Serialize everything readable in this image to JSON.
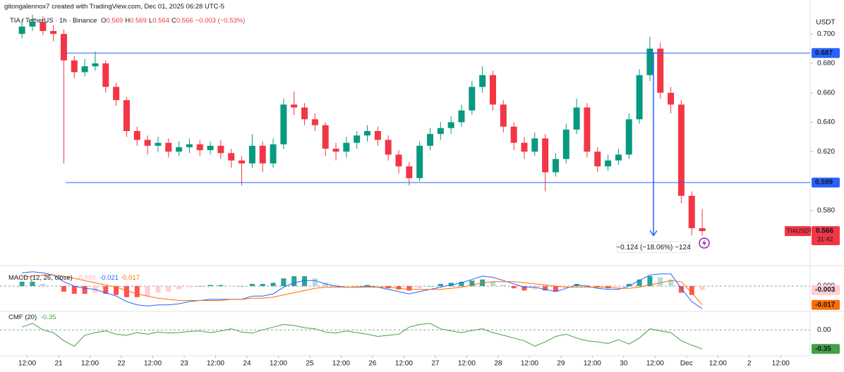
{
  "chart_data": {
    "type": "candlestick",
    "attribution": "gitongalennox7 created with TradingView.com, Dec 01, 2025 06:28 UTC-5",
    "symbol": "TIA / TetherUS · 1h · Binance",
    "ohlc_legend": [
      {
        "key": "O",
        "value": "0.569"
      },
      {
        "key": "H",
        "value": "0.569"
      },
      {
        "key": "L",
        "value": "0.564"
      },
      {
        "key": "C",
        "value": "0.566"
      }
    ],
    "change": "−0.003 (−0.53%)",
    "unit": "USDT",
    "up_color": "#089981",
    "down_color": "#f23645",
    "x": [
      "2025-11-20T08:00",
      "2025-11-20T12:00",
      "2025-11-20T16:00",
      "2025-11-20T20:00",
      "2025-11-21T00:00",
      "2025-11-21T04:00",
      "2025-11-21T08:00",
      "2025-11-21T12:00",
      "2025-11-21T16:00",
      "2025-11-21T20:00",
      "2025-11-22T00:00",
      "2025-11-22T04:00",
      "2025-11-22T08:00",
      "2025-11-22T12:00",
      "2025-11-22T16:00",
      "2025-11-22T20:00",
      "2025-11-23T00:00",
      "2025-11-23T04:00",
      "2025-11-23T08:00",
      "2025-11-23T12:00",
      "2025-11-23T16:00",
      "2025-11-23T20:00",
      "2025-11-24T00:00",
      "2025-11-24T04:00",
      "2025-11-24T08:00",
      "2025-11-24T12:00",
      "2025-11-24T16:00",
      "2025-11-24T20:00",
      "2025-11-25T00:00",
      "2025-11-25T04:00",
      "2025-11-25T08:00",
      "2025-11-25T12:00",
      "2025-11-25T16:00",
      "2025-11-25T20:00",
      "2025-11-26T00:00",
      "2025-11-26T04:00",
      "2025-11-26T08:00",
      "2025-11-26T12:00",
      "2025-11-26T16:00",
      "2025-11-26T20:00",
      "2025-11-27T00:00",
      "2025-11-27T04:00",
      "2025-11-27T08:00",
      "2025-11-27T12:00",
      "2025-11-27T16:00",
      "2025-11-27T20:00",
      "2025-11-28T00:00",
      "2025-11-28T04:00",
      "2025-11-28T08:00",
      "2025-11-28T12:00",
      "2025-11-28T16:00",
      "2025-11-28T20:00",
      "2025-11-29T00:00",
      "2025-11-29T04:00",
      "2025-11-29T08:00",
      "2025-11-29T12:00",
      "2025-11-29T16:00",
      "2025-11-29T20:00",
      "2025-11-30T00:00",
      "2025-11-30T04:00",
      "2025-11-30T08:00",
      "2025-11-30T12:00",
      "2025-11-30T16:00",
      "2025-11-30T20:00",
      "2025-12-01T00:00",
      "2025-12-01T04:00"
    ],
    "open": [
      0.7,
      0.705,
      0.708,
      0.702,
      0.7,
      0.682,
      0.674,
      0.678,
      0.68,
      0.664,
      0.655,
      0.634,
      0.628,
      0.624,
      0.626,
      0.62,
      0.623,
      0.625,
      0.621,
      0.624,
      0.619,
      0.614,
      0.612,
      0.624,
      0.612,
      0.625,
      0.652,
      0.65,
      0.642,
      0.638,
      0.622,
      0.62,
      0.626,
      0.631,
      0.634,
      0.628,
      0.618,
      0.61,
      0.602,
      0.624,
      0.632,
      0.636,
      0.64,
      0.648,
      0.664,
      0.672,
      0.652,
      0.637,
      0.626,
      0.62,
      0.629,
      0.606,
      0.615,
      0.635,
      0.65,
      0.62,
      0.61,
      0.614,
      0.618,
      0.642,
      0.672,
      0.69,
      0.66,
      0.652,
      0.59,
      0.568
    ],
    "high": [
      0.71,
      0.713,
      0.712,
      0.706,
      0.703,
      0.685,
      0.683,
      0.688,
      0.682,
      0.667,
      0.657,
      0.637,
      0.631,
      0.63,
      0.629,
      0.627,
      0.629,
      0.628,
      0.627,
      0.628,
      0.622,
      0.617,
      0.632,
      0.627,
      0.629,
      0.656,
      0.661,
      0.653,
      0.646,
      0.64,
      0.626,
      0.63,
      0.634,
      0.638,
      0.637,
      0.631,
      0.621,
      0.613,
      0.627,
      0.636,
      0.64,
      0.644,
      0.652,
      0.668,
      0.678,
      0.675,
      0.655,
      0.64,
      0.63,
      0.633,
      0.632,
      0.619,
      0.639,
      0.656,
      0.653,
      0.623,
      0.618,
      0.622,
      0.646,
      0.676,
      0.698,
      0.694,
      0.664,
      0.655,
      0.593,
      0.581
    ],
    "low": [
      0.697,
      0.702,
      0.699,
      0.695,
      0.612,
      0.67,
      0.671,
      0.675,
      0.66,
      0.651,
      0.63,
      0.624,
      0.618,
      0.62,
      0.616,
      0.617,
      0.619,
      0.617,
      0.618,
      0.615,
      0.609,
      0.597,
      0.609,
      0.606,
      0.609,
      0.622,
      0.645,
      0.638,
      0.634,
      0.617,
      0.614,
      0.616,
      0.622,
      0.627,
      0.624,
      0.614,
      0.605,
      0.597,
      0.6,
      0.621,
      0.628,
      0.632,
      0.637,
      0.645,
      0.66,
      0.648,
      0.633,
      0.621,
      0.615,
      0.617,
      0.593,
      0.603,
      0.612,
      0.632,
      0.616,
      0.606,
      0.607,
      0.611,
      0.615,
      0.639,
      0.668,
      0.656,
      0.646,
      0.585,
      0.563,
      0.563
    ],
    "close": [
      0.705,
      0.708,
      0.702,
      0.7,
      0.682,
      0.674,
      0.678,
      0.68,
      0.664,
      0.655,
      0.634,
      0.628,
      0.624,
      0.626,
      0.62,
      0.623,
      0.625,
      0.621,
      0.624,
      0.619,
      0.614,
      0.612,
      0.624,
      0.612,
      0.625,
      0.652,
      0.65,
      0.642,
      0.638,
      0.622,
      0.62,
      0.626,
      0.631,
      0.634,
      0.628,
      0.618,
      0.61,
      0.602,
      0.624,
      0.632,
      0.636,
      0.64,
      0.648,
      0.664,
      0.672,
      0.652,
      0.637,
      0.626,
      0.62,
      0.629,
      0.606,
      0.615,
      0.635,
      0.65,
      0.62,
      0.61,
      0.614,
      0.618,
      0.642,
      0.672,
      0.69,
      0.66,
      0.652,
      0.59,
      0.568,
      0.566
    ],
    "xlim": [
      "2025-11-20T01:36",
      "2025-12-02T23:15"
    ],
    "xticks": [
      {
        "value": "2025-11-20T12:00",
        "label": "12:00"
      },
      {
        "value": "2025-11-21T00:00",
        "label": "21"
      },
      {
        "value": "2025-11-21T12:00",
        "label": "12:00"
      },
      {
        "value": "2025-11-22T00:00",
        "label": "22"
      },
      {
        "value": "2025-11-22T12:00",
        "label": "12:00"
      },
      {
        "value": "2025-11-23T00:00",
        "label": "23"
      },
      {
        "value": "2025-11-23T12:00",
        "label": "12:00"
      },
      {
        "value": "2025-11-24T00:00",
        "label": "24"
      },
      {
        "value": "2025-11-24T12:00",
        "label": "12:00"
      },
      {
        "value": "2025-11-25T00:00",
        "label": "25"
      },
      {
        "value": "2025-11-25T12:00",
        "label": "12:00"
      },
      {
        "value": "2025-11-26T00:00",
        "label": "26"
      },
      {
        "value": "2025-11-26T12:00",
        "label": "12:00"
      },
      {
        "value": "2025-11-27T00:00",
        "label": "27"
      },
      {
        "value": "2025-11-27T12:00",
        "label": "12:00"
      },
      {
        "value": "2025-11-28T00:00",
        "label": "28"
      },
      {
        "value": "2025-11-28T12:00",
        "label": "12:00"
      },
      {
        "value": "2025-11-29T00:00",
        "label": "29"
      },
      {
        "value": "2025-11-29T12:00",
        "label": "12:00"
      },
      {
        "value": "2025-11-30T00:00",
        "label": "30"
      },
      {
        "value": "2025-11-30T12:00",
        "label": "12:00"
      },
      {
        "value": "2025-12-01T00:00",
        "label": "Dec"
      },
      {
        "value": "2025-12-01T12:00",
        "label": "12:00"
      },
      {
        "value": "2025-12-02T00:00",
        "label": "2"
      },
      {
        "value": "2025-12-02T12:00",
        "label": "12:00"
      }
    ],
    "ylim": [
      0.555,
      0.713
    ],
    "yticks": [
      {
        "value": 0.58,
        "label": "0.580"
      },
      {
        "value": 0.62,
        "label": "0.620"
      },
      {
        "value": 0.64,
        "label": "0.640"
      },
      {
        "value": 0.66,
        "label": "0.660"
      },
      {
        "value": 0.68,
        "label": "0.680"
      },
      {
        "value": 0.7,
        "label": "0.700"
      }
    ],
    "levels": [
      {
        "value": 0.687,
        "label": "0.687"
      },
      {
        "value": 0.599,
        "label": "0.599"
      }
    ],
    "drawing_color": "#2962ff",
    "measure": {
      "from": 0.687,
      "to": 0.563,
      "label": "−0.124 (−18.06%) −124"
    },
    "last_price": {
      "name": "TIAUSDT",
      "label": "0.566",
      "countdown": "31:42"
    },
    "panes": [
      {
        "type": "macd",
        "title": "MACD (12, 26, close)",
        "ylim": [
          -0.021,
          0.016
        ],
        "yticks": [
          {
            "value": 0,
            "label": "0.000"
          }
        ],
        "hist_colors": [
          "#26a69a",
          "#b2dfdb",
          "#ff5252",
          "#ffcdd2"
        ],
        "hist": {
          "name": "-0.003",
          "badge_color": "#ffcdd2",
          "values": [
            0.004,
            0.004,
            0.002,
            0,
            -0.005,
            -0.007,
            -0.007,
            -0.006,
            -0.007,
            -0.008,
            -0.01,
            -0.01,
            -0.009,
            -0.006,
            -0.005,
            -0.003,
            -0.001,
            0,
            0.001,
            0.001,
            0,
            0,
            0.002,
            0.002,
            0.003,
            0.007,
            0.009,
            0.009,
            0.007,
            0.003,
            0.001,
            0,
            0,
            0.001,
            0,
            -0.002,
            -0.003,
            -0.004,
            -0.002,
            0,
            0.002,
            0.003,
            0.004,
            0.005,
            0.006,
            0.004,
            0.001,
            -0.002,
            -0.004,
            -0.003,
            -0.004,
            -0.005,
            -0.001,
            0.002,
            0.001,
            -0.001,
            -0.002,
            -0.001,
            0.002,
            0.006,
            0.009,
            0.008,
            0.006,
            -0.006,
            -0.008,
            -0.0035
          ]
        },
        "series": [
          {
            "name": "-0.021",
            "color": "#2962ff",
            "values": [
              0.012,
              0.013,
              0.012,
              0.01,
              0.004,
              0,
              -0.002,
              -0.003,
              -0.006,
              -0.009,
              -0.014,
              -0.017,
              -0.018,
              -0.017,
              -0.017,
              -0.016,
              -0.014,
              -0.013,
              -0.012,
              -0.012,
              -0.012,
              -0.012,
              -0.009,
              -0.009,
              -0.007,
              -0.001,
              0.003,
              0.005,
              0.005,
              0.002,
              0,
              -0.001,
              -0.001,
              0,
              -0.001,
              -0.003,
              -0.005,
              -0.007,
              -0.005,
              -0.003,
              -0.001,
              0.001,
              0.003,
              0.006,
              0.009,
              0.008,
              0.005,
              0.002,
              -0.001,
              -0.001,
              -0.003,
              -0.005,
              -0.002,
              0.001,
              0,
              -0.002,
              -0.003,
              -0.003,
              0,
              0.005,
              0.01,
              0.011,
              0.011,
              -0.002,
              -0.014,
              -0.0205
            ]
          },
          {
            "name": "-0.017",
            "color": "#ff6d00",
            "badge": true,
            "values": [
              0.008,
              0.009,
              0.01,
              0.01,
              0.009,
              0.007,
              0.005,
              0.003,
              0.001,
              -0.001,
              -0.004,
              -0.007,
              -0.009,
              -0.011,
              -0.012,
              -0.013,
              -0.013,
              -0.013,
              -0.013,
              -0.013,
              -0.012,
              -0.012,
              -0.011,
              -0.011,
              -0.01,
              -0.008,
              -0.006,
              -0.004,
              -0.002,
              -0.001,
              -0.001,
              -0.001,
              -0.001,
              -0.001,
              -0.001,
              -0.001,
              -0.002,
              -0.003,
              -0.003,
              -0.003,
              -0.003,
              -0.002,
              -0.001,
              0.001,
              0.003,
              0.004,
              0.004,
              0.004,
              0.003,
              0.002,
              0.001,
              0,
              -0.001,
              -0.001,
              -0.001,
              -0.001,
              -0.001,
              -0.002,
              -0.002,
              -0.001,
              0.001,
              0.003,
              0.005,
              0.004,
              -0.006,
              -0.017
            ]
          }
        ]
      },
      {
        "type": "cmf",
        "title": "CMF (20)",
        "ylim": [
          -0.45,
          0.3
        ],
        "yticks": [
          {
            "value": 0,
            "label": "0.00"
          }
        ],
        "series": [
          {
            "name": "-0.35",
            "color": "#43a047",
            "badge": true,
            "values": [
              0.05,
              0.12,
              0.0,
              -0.05,
              -0.2,
              -0.3,
              -0.1,
              -0.05,
              -0.02,
              -0.08,
              -0.1,
              -0.05,
              -0.08,
              -0.04,
              -0.06,
              -0.05,
              -0.03,
              -0.02,
              -0.05,
              -0.02,
              0.02,
              -0.04,
              -0.06,
              0.0,
              0.05,
              0.1,
              0.08,
              0.04,
              0.02,
              -0.04,
              -0.06,
              -0.02,
              -0.05,
              -0.08,
              -0.12,
              -0.1,
              -0.08,
              0.05,
              0.1,
              0.12,
              0.02,
              -0.02,
              -0.05,
              -0.01,
              0.02,
              -0.05,
              -0.1,
              -0.15,
              -0.2,
              -0.3,
              -0.22,
              -0.12,
              -0.08,
              -0.15,
              -0.2,
              -0.22,
              -0.25,
              -0.18,
              -0.26,
              -0.15,
              0.02,
              -0.02,
              -0.05,
              -0.2,
              -0.28,
              -0.35
            ]
          }
        ]
      }
    ]
  }
}
